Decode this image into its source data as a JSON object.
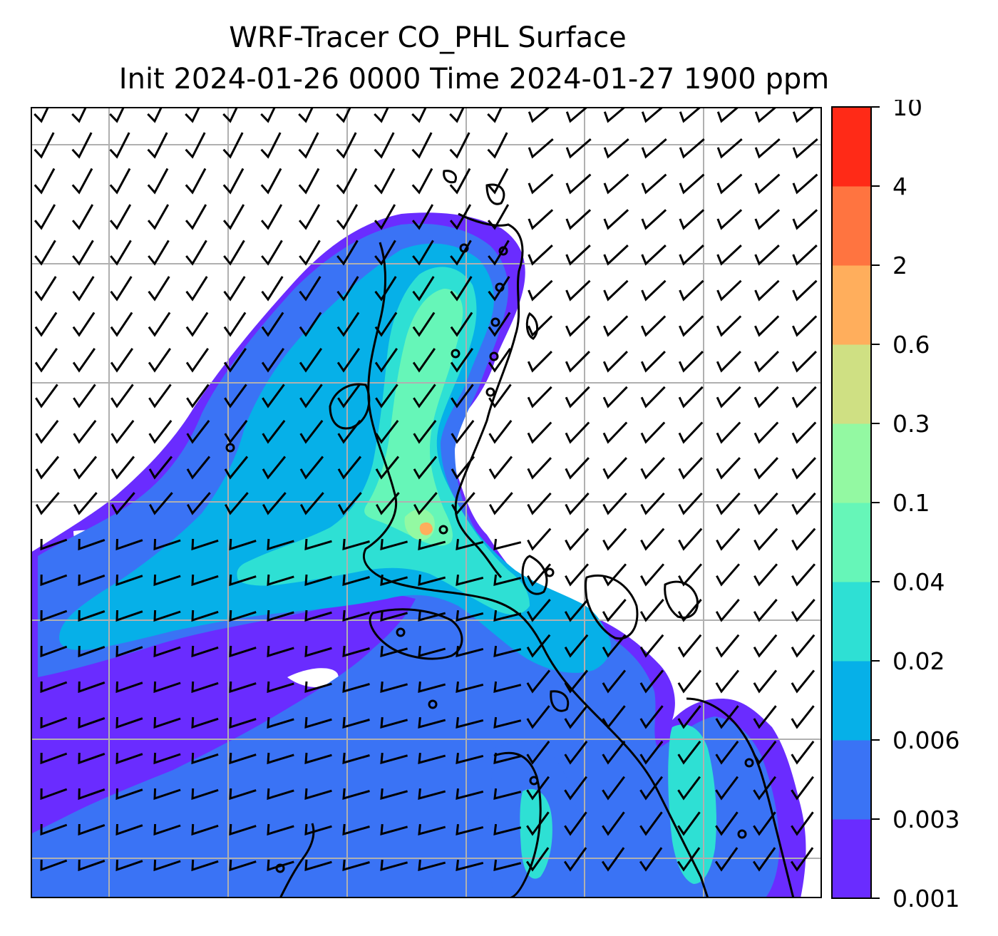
{
  "title": {
    "line1": "WRF-Tracer CO_PHL Surface",
    "line2": "Init 2024-01-26 0000 Time 2024-01-27 1900 ppm"
  },
  "colorbar": {
    "tick_labels": [
      "0.001",
      "0.003",
      "0.006",
      "0.02",
      "0.04",
      "0.1",
      "0.3",
      "0.6",
      "2",
      "4",
      "10"
    ],
    "colors": [
      "#6a2cff",
      "#3a73f5",
      "#06b0e8",
      "#2ee0d4",
      "#66f6b8",
      "#93f9a2",
      "#cfe083",
      "#ffae5c",
      "#ff7440",
      "#ff2a17"
    ]
  },
  "map": {
    "background": "#ffffff",
    "gridline_color": "#b0b0b0",
    "coastline_color": "#000000",
    "barb_color": "#000000"
  }
}
